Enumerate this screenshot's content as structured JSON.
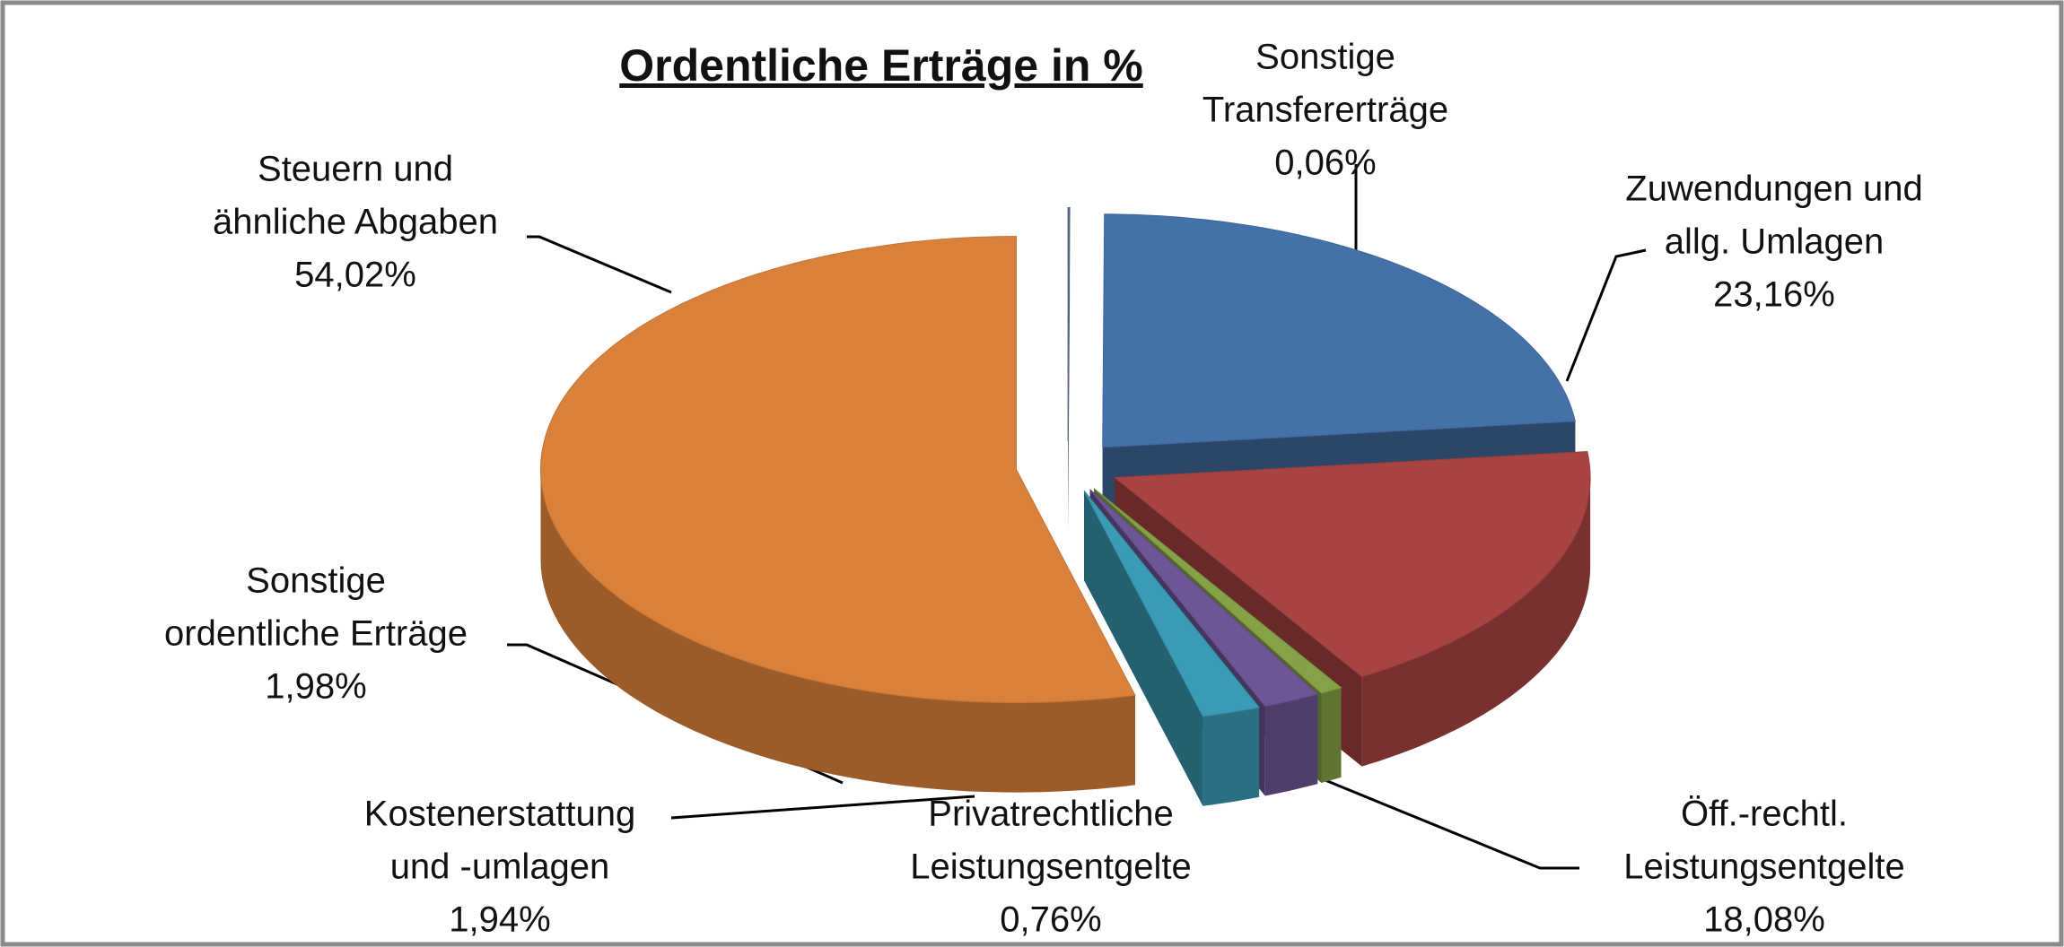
{
  "chart_data": {
    "type": "pie3d",
    "title": "Ordentliche Erträge in %",
    "categories": [
      [
        "Sonstige",
        "Transfererträge"
      ],
      [
        "Zuwendungen und",
        "allg. Umlagen"
      ],
      [
        "Öff.-rechtl.",
        "Leistungsentgelte"
      ],
      [
        "Privatrechtliche",
        "Leistungsentgelte"
      ],
      [
        "Kostenerstattung",
        "und -umlagen"
      ],
      [
        "Sonstige",
        "ordentliche Erträge"
      ],
      [
        "Steuern und",
        "ähnliche Abgaben"
      ]
    ],
    "values": [
      0.06,
      23.16,
      18.08,
      0.76,
      1.94,
      1.98,
      54.02
    ],
    "value_labels": [
      "0,06%",
      "23,16%",
      "18,08%",
      "0,76%",
      "1,94%",
      "1,98%",
      "54,02%"
    ],
    "colors": [
      "#5b6f8e",
      "#4571a9",
      "#a74442",
      "#85a247",
      "#6e5596",
      "#3a9bb4",
      "#d9803b"
    ]
  }
}
